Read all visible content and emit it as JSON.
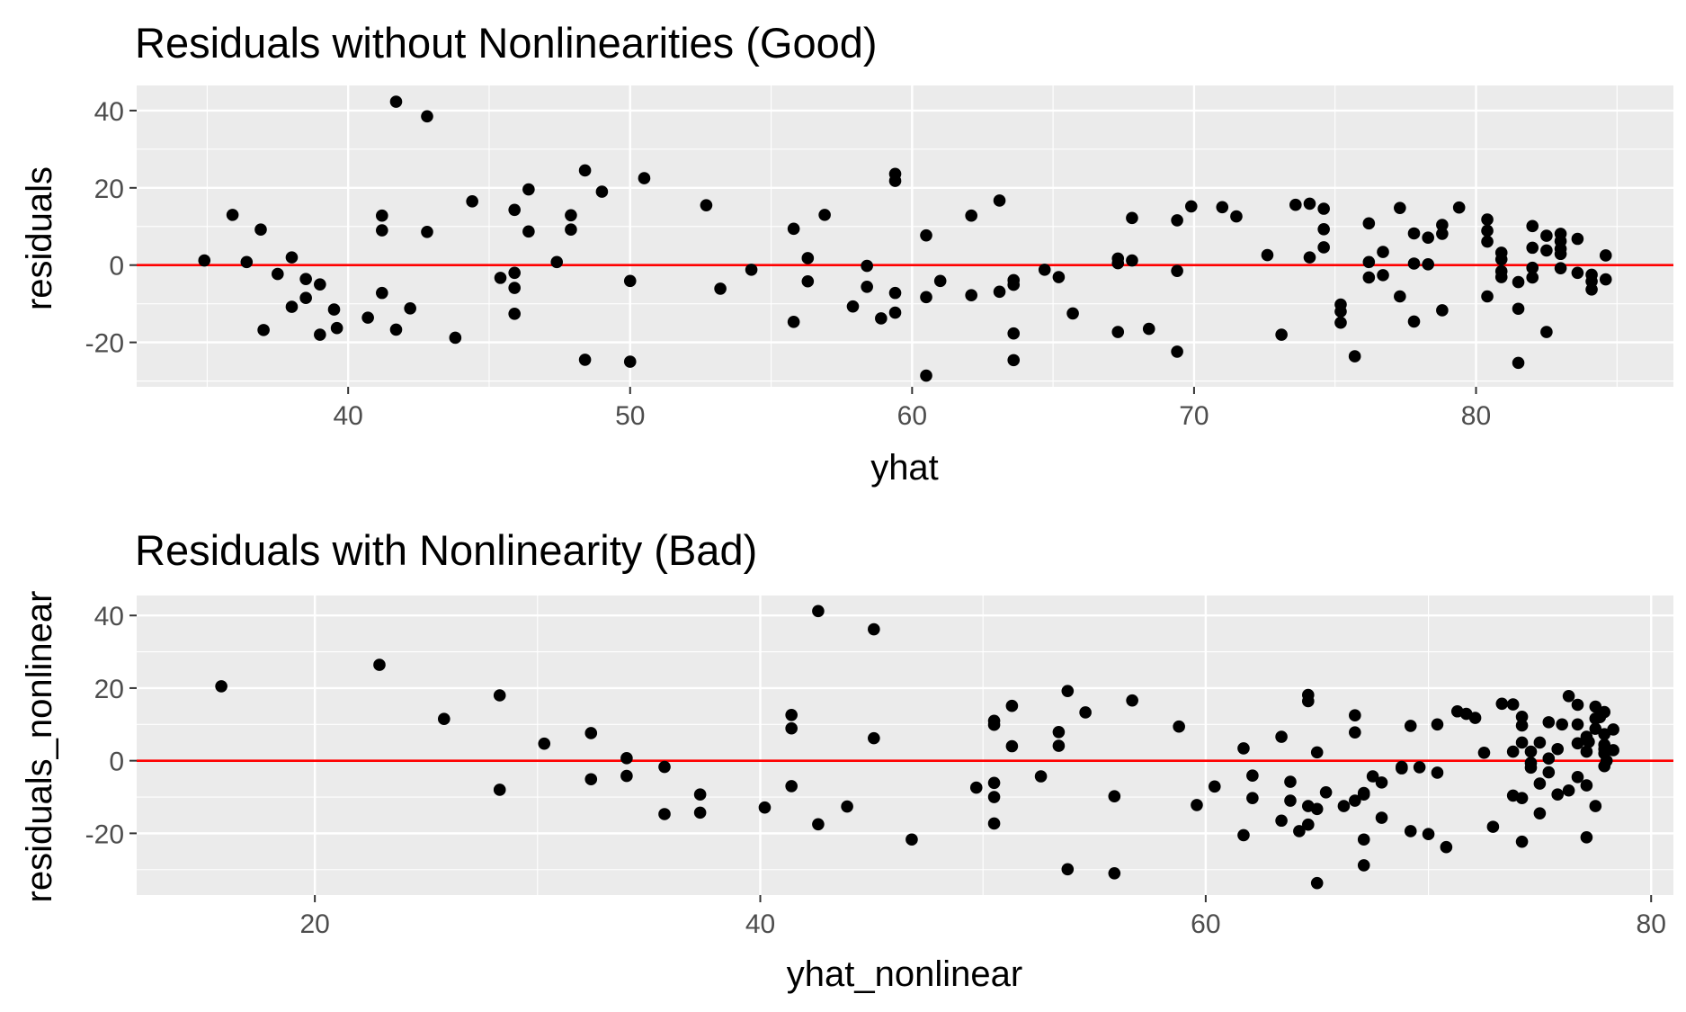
{
  "chart_data": [
    {
      "type": "scatter",
      "title": "Residuals without Nonlinearities (Good)",
      "xlabel": "yhat",
      "ylabel": "residuals",
      "xlim": [
        32.5,
        87.0
      ],
      "ylim": [
        -31.5,
        46.5
      ],
      "x_ticks": [
        40,
        50,
        60,
        70,
        80
      ],
      "y_ticks": [
        -20,
        0,
        20,
        40
      ],
      "x_tick_labels": [
        "40",
        "50",
        "60",
        "70",
        "80"
      ],
      "y_tick_labels": [
        "-20",
        "0",
        "20",
        "40"
      ],
      "grid": true,
      "background": "#ebebeb",
      "point_color": "#000000",
      "reference_line": {
        "y": 0,
        "color": "#ff0000"
      },
      "points": [
        [
          34.9,
          1.2
        ],
        [
          35.9,
          13.0
        ],
        [
          36.4,
          0.8
        ],
        [
          36.9,
          9.2
        ],
        [
          37.0,
          -16.8
        ],
        [
          37.5,
          -2.3
        ],
        [
          38.0,
          2.0
        ],
        [
          38.0,
          -10.8
        ],
        [
          38.5,
          -3.6
        ],
        [
          38.5,
          -8.5
        ],
        [
          39.0,
          -5.0
        ],
        [
          39.0,
          -18.0
        ],
        [
          39.5,
          -11.5
        ],
        [
          39.6,
          -16.3
        ],
        [
          40.7,
          -13.6
        ],
        [
          41.2,
          12.8
        ],
        [
          41.2,
          9.0
        ],
        [
          41.2,
          -7.2
        ],
        [
          41.7,
          42.3
        ],
        [
          41.7,
          -16.7
        ],
        [
          42.2,
          -11.2
        ],
        [
          42.8,
          38.5
        ],
        [
          42.8,
          8.6
        ],
        [
          43.8,
          -18.8
        ],
        [
          44.4,
          16.5
        ],
        [
          45.4,
          -3.3
        ],
        [
          45.9,
          14.3
        ],
        [
          45.9,
          -2.0
        ],
        [
          45.9,
          -5.9
        ],
        [
          45.9,
          -12.6
        ],
        [
          46.4,
          19.6
        ],
        [
          46.4,
          8.7
        ],
        [
          47.4,
          0.8
        ],
        [
          47.9,
          12.9
        ],
        [
          47.9,
          9.2
        ],
        [
          48.4,
          24.5
        ],
        [
          48.4,
          -24.5
        ],
        [
          49.0,
          19.0
        ],
        [
          50.0,
          -4.1
        ],
        [
          50.0,
          -25.0
        ],
        [
          50.5,
          22.5
        ],
        [
          52.7,
          15.5
        ],
        [
          53.2,
          -6.1
        ],
        [
          54.3,
          -1.2
        ],
        [
          55.8,
          9.4
        ],
        [
          55.8,
          -14.7
        ],
        [
          56.3,
          1.8
        ],
        [
          56.3,
          -4.2
        ],
        [
          56.9,
          13.0
        ],
        [
          57.9,
          -10.7
        ],
        [
          58.4,
          -0.2
        ],
        [
          58.4,
          -5.6
        ],
        [
          58.9,
          -13.8
        ],
        [
          59.4,
          23.6
        ],
        [
          59.4,
          21.8
        ],
        [
          59.4,
          -7.2
        ],
        [
          59.4,
          -12.3
        ],
        [
          60.5,
          7.7
        ],
        [
          60.5,
          -8.3
        ],
        [
          60.5,
          -28.6
        ],
        [
          61.0,
          -4.1
        ],
        [
          62.1,
          12.8
        ],
        [
          62.1,
          -7.8
        ],
        [
          63.1,
          16.7
        ],
        [
          63.1,
          -6.9
        ],
        [
          63.6,
          -3.9
        ],
        [
          63.6,
          -5.1
        ],
        [
          63.6,
          -17.7
        ],
        [
          63.6,
          -24.6
        ],
        [
          64.7,
          -1.2
        ],
        [
          65.2,
          -3.1
        ],
        [
          65.7,
          -12.5
        ],
        [
          67.3,
          1.7
        ],
        [
          67.3,
          0.5
        ],
        [
          67.3,
          -17.3
        ],
        [
          67.8,
          12.2
        ],
        [
          67.8,
          1.2
        ],
        [
          68.4,
          -16.5
        ],
        [
          69.4,
          11.6
        ],
        [
          69.4,
          -1.5
        ],
        [
          69.4,
          -22.4
        ],
        [
          69.9,
          15.2
        ],
        [
          71.0,
          15.0
        ],
        [
          71.5,
          12.6
        ],
        [
          72.6,
          2.6
        ],
        [
          73.1,
          -18.0
        ],
        [
          73.6,
          15.6
        ],
        [
          74.1,
          15.9
        ],
        [
          74.1,
          2.0
        ],
        [
          74.6,
          14.6
        ],
        [
          74.6,
          9.3
        ],
        [
          74.6,
          4.6
        ],
        [
          75.2,
          -10.2
        ],
        [
          75.2,
          -12.0
        ],
        [
          75.2,
          -14.9
        ],
        [
          75.7,
          -23.6
        ],
        [
          76.2,
          10.8
        ],
        [
          76.2,
          0.8
        ],
        [
          76.2,
          -3.2
        ],
        [
          76.7,
          3.4
        ],
        [
          76.7,
          -2.6
        ],
        [
          77.3,
          14.8
        ],
        [
          77.3,
          -8.1
        ],
        [
          77.8,
          8.2
        ],
        [
          77.8,
          0.4
        ],
        [
          77.8,
          -14.6
        ],
        [
          78.3,
          7.1
        ],
        [
          78.3,
          0.2
        ],
        [
          78.8,
          10.4
        ],
        [
          78.8,
          8.1
        ],
        [
          78.8,
          -11.7
        ],
        [
          79.4,
          14.9
        ],
        [
          80.4,
          11.8
        ],
        [
          80.4,
          8.9
        ],
        [
          80.4,
          6.1
        ],
        [
          80.4,
          -8.1
        ],
        [
          80.9,
          3.2
        ],
        [
          80.9,
          1.5
        ],
        [
          80.9,
          -1.6
        ],
        [
          80.9,
          -3.1
        ],
        [
          81.5,
          -4.4
        ],
        [
          81.5,
          -11.3
        ],
        [
          81.5,
          -25.3
        ],
        [
          82.0,
          10.1
        ],
        [
          82.0,
          4.5
        ],
        [
          82.0,
          -0.7
        ],
        [
          82.0,
          -3.2
        ],
        [
          82.5,
          7.6
        ],
        [
          82.5,
          3.8
        ],
        [
          82.5,
          -17.3
        ],
        [
          83.0,
          8.1
        ],
        [
          83.0,
          6.2
        ],
        [
          83.0,
          4.2
        ],
        [
          83.0,
          2.9
        ],
        [
          83.0,
          -0.8
        ],
        [
          83.6,
          6.8
        ],
        [
          83.6,
          -2.0
        ],
        [
          84.1,
          -2.5
        ],
        [
          84.1,
          -4.2
        ],
        [
          84.1,
          -6.3
        ],
        [
          84.6,
          2.5
        ],
        [
          84.6,
          -3.7
        ]
      ]
    },
    {
      "type": "scatter",
      "title": "Residuals with Nonlinearity (Bad)",
      "xlabel": "yhat_nonlinear",
      "ylabel": "residuals_nonlinear",
      "xlim": [
        12.0,
        81.0
      ],
      "ylim": [
        -37.0,
        45.5
      ],
      "x_ticks": [
        20,
        40,
        60,
        80
      ],
      "y_ticks": [
        -20,
        0,
        20,
        40
      ],
      "x_tick_labels": [
        "20",
        "40",
        "60",
        "80"
      ],
      "y_tick_labels": [
        "-20",
        "0",
        "20",
        "40"
      ],
      "grid": true,
      "background": "#ebebeb",
      "point_color": "#000000",
      "reference_line": {
        "y": 0,
        "color": "#ff0000"
      },
      "points": [
        [
          15.8,
          20.5
        ],
        [
          22.9,
          26.4
        ],
        [
          25.8,
          11.5
        ],
        [
          28.3,
          18.0
        ],
        [
          28.3,
          -8.0
        ],
        [
          30.3,
          4.7
        ],
        [
          32.4,
          7.6
        ],
        [
          32.4,
          -5.1
        ],
        [
          34.0,
          0.7
        ],
        [
          34.0,
          -4.2
        ],
        [
          35.7,
          -1.7
        ],
        [
          35.7,
          -14.7
        ],
        [
          37.3,
          -9.3
        ],
        [
          37.3,
          -14.3
        ],
        [
          40.2,
          -12.9
        ],
        [
          41.4,
          12.6
        ],
        [
          41.4,
          8.9
        ],
        [
          41.4,
          -7.0
        ],
        [
          42.6,
          41.2
        ],
        [
          42.6,
          -17.5
        ],
        [
          43.9,
          -12.6
        ],
        [
          45.1,
          36.2
        ],
        [
          45.1,
          6.2
        ],
        [
          46.8,
          -21.7
        ],
        [
          49.7,
          -7.4
        ],
        [
          50.5,
          11.0
        ],
        [
          50.5,
          9.9
        ],
        [
          50.5,
          -6.1
        ],
        [
          50.5,
          -10.0
        ],
        [
          50.5,
          -17.3
        ],
        [
          51.3,
          15.1
        ],
        [
          51.3,
          4.0
        ],
        [
          52.6,
          -4.3
        ],
        [
          53.4,
          7.9
        ],
        [
          53.4,
          4.1
        ],
        [
          53.8,
          19.2
        ],
        [
          53.8,
          -29.9
        ],
        [
          54.6,
          13.3
        ],
        [
          55.9,
          -9.8
        ],
        [
          55.9,
          -31.0
        ],
        [
          56.7,
          16.6
        ],
        [
          58.8,
          9.4
        ],
        [
          59.6,
          -12.2
        ],
        [
          60.4,
          -7.1
        ],
        [
          61.7,
          3.4
        ],
        [
          61.7,
          -20.5
        ],
        [
          62.1,
          -4.1
        ],
        [
          62.1,
          -10.3
        ],
        [
          63.4,
          6.6
        ],
        [
          63.4,
          -16.5
        ],
        [
          63.8,
          -5.8
        ],
        [
          63.8,
          -11.0
        ],
        [
          64.2,
          -19.4
        ],
        [
          64.6,
          18.1
        ],
        [
          64.6,
          16.4
        ],
        [
          64.6,
          -12.5
        ],
        [
          64.6,
          -17.6
        ],
        [
          65.0,
          2.3
        ],
        [
          65.0,
          -13.3
        ],
        [
          65.0,
          -33.7
        ],
        [
          65.4,
          -8.7
        ],
        [
          66.2,
          -12.5
        ],
        [
          66.7,
          12.5
        ],
        [
          66.7,
          7.8
        ],
        [
          66.7,
          -11.0
        ],
        [
          67.1,
          -8.9
        ],
        [
          67.1,
          -9.3
        ],
        [
          67.1,
          -21.7
        ],
        [
          67.1,
          -28.8
        ],
        [
          67.5,
          -4.3
        ],
        [
          67.9,
          -6.0
        ],
        [
          67.9,
          -15.7
        ],
        [
          68.8,
          -1.7
        ],
        [
          68.8,
          -2.1
        ],
        [
          69.2,
          -19.4
        ],
        [
          69.2,
          9.6
        ],
        [
          69.6,
          -1.8
        ],
        [
          70.0,
          -20.2
        ],
        [
          70.4,
          10.0
        ],
        [
          70.4,
          -3.3
        ],
        [
          70.8,
          -23.8
        ],
        [
          71.3,
          13.6
        ],
        [
          71.7,
          12.9
        ],
        [
          72.1,
          11.8
        ],
        [
          72.5,
          2.2
        ],
        [
          72.9,
          -18.2
        ],
        [
          73.3,
          15.7
        ],
        [
          73.8,
          15.5
        ],
        [
          73.8,
          2.5
        ],
        [
          73.8,
          -9.6
        ],
        [
          74.2,
          12.1
        ],
        [
          74.2,
          9.7
        ],
        [
          74.2,
          5.0
        ],
        [
          74.2,
          -10.3
        ],
        [
          74.2,
          -22.3
        ],
        [
          74.6,
          2.5
        ],
        [
          74.6,
          -0.6
        ],
        [
          74.6,
          -1.9
        ],
        [
          75.0,
          5.0
        ],
        [
          75.0,
          -6.3
        ],
        [
          75.0,
          -14.5
        ],
        [
          75.4,
          10.6
        ],
        [
          75.4,
          0.6
        ],
        [
          75.4,
          -3.2
        ],
        [
          75.8,
          3.2
        ],
        [
          75.8,
          -9.3
        ],
        [
          76.3,
          17.8
        ],
        [
          76.3,
          -8.2
        ],
        [
          76.7,
          15.4
        ],
        [
          76.7,
          4.8
        ],
        [
          76.7,
          10.0
        ],
        [
          76.7,
          -4.5
        ],
        [
          77.1,
          2.5
        ],
        [
          77.1,
          6.6
        ],
        [
          77.1,
          -21.1
        ],
        [
          77.1,
          -6.8
        ],
        [
          77.5,
          14.9
        ],
        [
          77.5,
          11.6
        ],
        [
          77.5,
          8.8
        ],
        [
          77.5,
          -12.5
        ],
        [
          77.9,
          13.4
        ],
        [
          77.9,
          7.3
        ],
        [
          77.9,
          4.4
        ],
        [
          77.9,
          3.2
        ],
        [
          77.9,
          2.0
        ],
        [
          77.9,
          -1.5
        ],
        [
          78.3,
          8.6
        ],
        [
          78.3,
          2.9
        ],
        [
          78.0,
          0.0
        ],
        [
          77.7,
          12.0
        ],
        [
          76.0,
          10.0
        ],
        [
          77.2,
          5.2
        ]
      ]
    }
  ]
}
